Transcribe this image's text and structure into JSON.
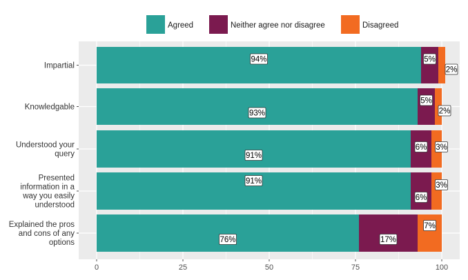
{
  "chart_data": {
    "type": "bar",
    "orientation": "horizontal",
    "stacked": true,
    "categories": [
      "Impartial",
      "Knowledgable",
      "Understood your query",
      "Presented information in a way you easily understood",
      "Explained the pros and cons of any options"
    ],
    "category_lines": [
      [
        "Impartial"
      ],
      [
        "Knowledgable"
      ],
      [
        "Understood your",
        "query"
      ],
      [
        "Presented",
        "information in a",
        "way you easily",
        "understood"
      ],
      [
        "Explained the pros",
        "and cons of any",
        "options"
      ]
    ],
    "series": [
      {
        "name": "Agreed",
        "color": "#2aa198",
        "values": [
          94,
          93,
          91,
          91,
          76
        ],
        "labels": [
          "94%",
          "93%",
          "91%",
          "91%",
          "76%"
        ]
      },
      {
        "name": "Neither agree nor disagree",
        "color": "#7b1a4f",
        "values": [
          5,
          5,
          6,
          6,
          17
        ],
        "labels": [
          "5%",
          "5%",
          "6%",
          "6%",
          "17%"
        ]
      },
      {
        "name": "Disagreed",
        "color": "#f26b21",
        "values": [
          2,
          2,
          3,
          3,
          7
        ],
        "labels": [
          "2%",
          "2%",
          "3%",
          "3%",
          "7%"
        ]
      }
    ],
    "xlim": [
      -5,
      106
    ],
    "xticks": [
      0,
      25,
      50,
      75,
      100
    ],
    "xtick_labels": [
      "0",
      "25",
      "50",
      "75",
      "100"
    ],
    "title": "",
    "xlabel": "",
    "ylabel": "",
    "legend_position": "top",
    "grid": true,
    "panel_background": "#ebebeb"
  }
}
